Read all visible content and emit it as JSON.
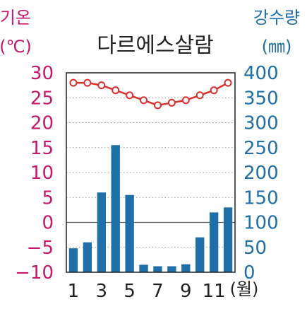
{
  "chart_data": {
    "type": "bar+line",
    "title": "다르에스살람",
    "x": [
      "1",
      "2",
      "3",
      "4",
      "5",
      "6",
      "7",
      "8",
      "9",
      "10",
      "11",
      "12"
    ],
    "x_tick_labels": [
      "1",
      "3",
      "5",
      "7",
      "9",
      "11"
    ],
    "x_unit": "(월)",
    "temperature": {
      "label": "기온",
      "unit": "(℃)",
      "ylim": [
        -10,
        30
      ],
      "ticks": [
        "30",
        "25",
        "20",
        "15",
        "10",
        "5",
        "0",
        "−5",
        "−10"
      ],
      "values": [
        28,
        28,
        27.5,
        26.5,
        25.5,
        24.5,
        23.5,
        24,
        24.5,
        25.5,
        26.5,
        28
      ]
    },
    "precipitation": {
      "label": "강수량",
      "unit": "(㎜)",
      "ylim": [
        0,
        400
      ],
      "ticks": [
        "400",
        "350",
        "300",
        "250",
        "200",
        "150",
        "100",
        "50",
        "0"
      ],
      "values": [
        48,
        60,
        160,
        255,
        155,
        15,
        12,
        12,
        16,
        70,
        120,
        130
      ]
    },
    "grid": "horizontal dotted",
    "colors": {
      "temperature": "#c8186e",
      "precipitation": "#1f6fa8",
      "line": "#d93030"
    }
  }
}
